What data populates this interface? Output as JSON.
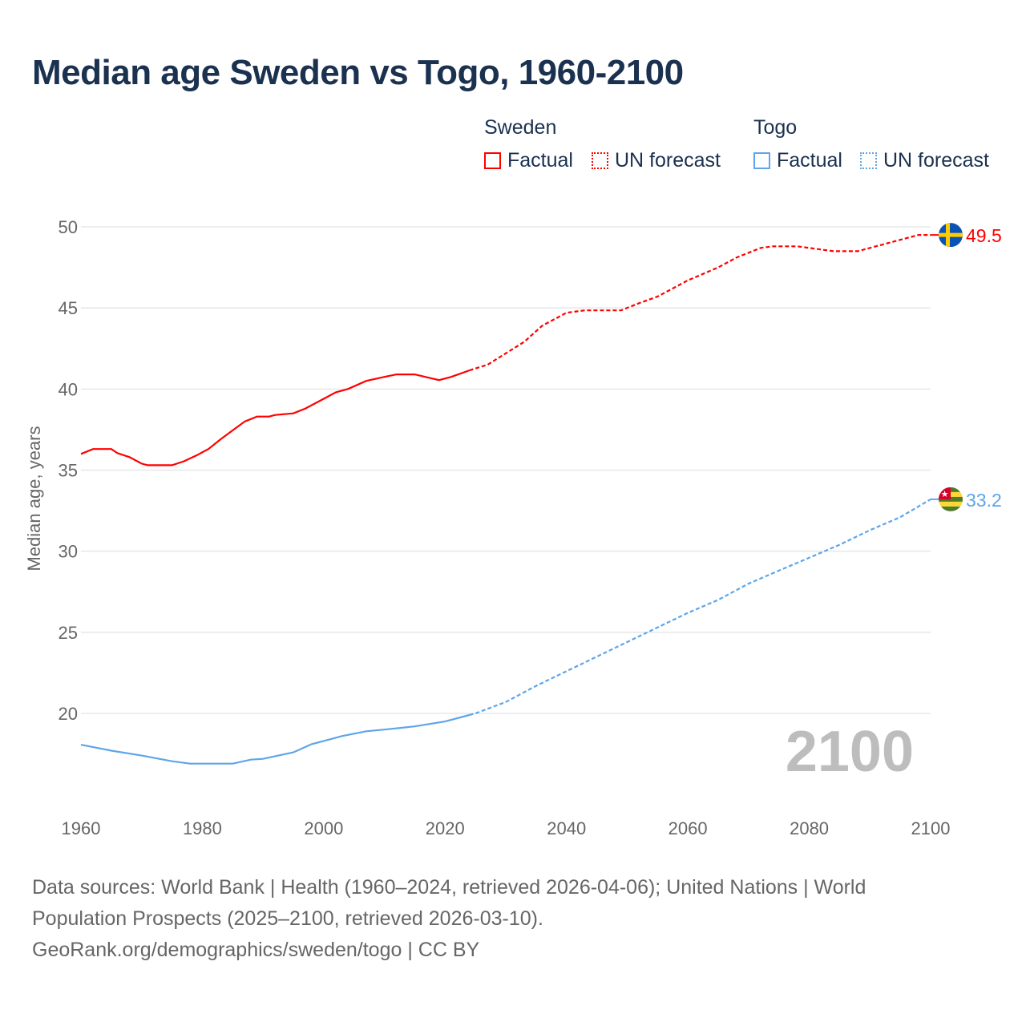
{
  "title": "Median age Sweden vs Togo, 1960-2100",
  "legend": {
    "groups": [
      {
        "name": "Sweden",
        "color": "#ff0000",
        "factual_label": "Factual",
        "forecast_label": "UN forecast"
      },
      {
        "name": "Togo",
        "color": "#5ea5ea",
        "factual_label": "Factual",
        "forecast_label": "UN forecast"
      }
    ]
  },
  "footer": {
    "sources": "Data sources: World Bank | Health (1960–2024, retrieved 2026-04-06); United Nations | World Population Prospects (2025–2100, retrieved 2026-03-10).",
    "credit": "GeoRank.org/demographics/sweden/togo | CC BY"
  },
  "chart_data": {
    "type": "line",
    "title": "Median age Sweden vs Togo, 1960-2100",
    "xlabel": "",
    "ylabel": "Median age, years",
    "xlim": [
      1960,
      2100
    ],
    "ylim": [
      15,
      50
    ],
    "x_ticks": [
      "1960",
      "1980",
      "2000",
      "2020",
      "2040",
      "2060",
      "2080",
      "2100"
    ],
    "y_ticks": [
      "20",
      "25",
      "30",
      "35",
      "40",
      "45",
      "50"
    ],
    "grid": true,
    "year_watermark": "2100",
    "factual_end": 2024,
    "series": [
      {
        "name": "Sweden",
        "color": "#ff0000",
        "end_label": "49.5",
        "points": [
          [
            1960,
            36.0
          ],
          [
            1962,
            36.3
          ],
          [
            1965,
            36.3
          ],
          [
            1966,
            36.05
          ],
          [
            1968,
            35.8
          ],
          [
            1970,
            35.4
          ],
          [
            1971,
            35.3
          ],
          [
            1975,
            35.3
          ],
          [
            1977,
            35.55
          ],
          [
            1979,
            35.9
          ],
          [
            1981,
            36.3
          ],
          [
            1983,
            36.9
          ],
          [
            1985,
            37.45
          ],
          [
            1987,
            38.0
          ],
          [
            1989,
            38.3
          ],
          [
            1991,
            38.3
          ],
          [
            1992,
            38.4
          ],
          [
            1995,
            38.5
          ],
          [
            1997,
            38.8
          ],
          [
            2000,
            39.4
          ],
          [
            2002,
            39.8
          ],
          [
            2004,
            40.0
          ],
          [
            2007,
            40.5
          ],
          [
            2010,
            40.75
          ],
          [
            2012,
            40.9
          ],
          [
            2015,
            40.9
          ],
          [
            2019,
            40.55
          ],
          [
            2021,
            40.75
          ],
          [
            2024,
            41.15
          ],
          [
            2027,
            41.5
          ],
          [
            2030,
            42.2
          ],
          [
            2033,
            42.9
          ],
          [
            2036,
            43.9
          ],
          [
            2040,
            44.7
          ],
          [
            2043,
            44.85
          ],
          [
            2049,
            44.85
          ],
          [
            2052,
            45.3
          ],
          [
            2055,
            45.7
          ],
          [
            2060,
            46.7
          ],
          [
            2065,
            47.5
          ],
          [
            2068,
            48.1
          ],
          [
            2072,
            48.7
          ],
          [
            2074,
            48.8
          ],
          [
            2078,
            48.8
          ],
          [
            2080,
            48.7
          ],
          [
            2084,
            48.5
          ],
          [
            2088,
            48.5
          ],
          [
            2090,
            48.7
          ],
          [
            2095,
            49.2
          ],
          [
            2098,
            49.5
          ],
          [
            2100,
            49.5
          ]
        ]
      },
      {
        "name": "Togo",
        "color": "#5ea5ea",
        "end_label": "33.2",
        "points": [
          [
            1960,
            18.07
          ],
          [
            1965,
            17.7
          ],
          [
            1970,
            17.4
          ],
          [
            1975,
            17.05
          ],
          [
            1978,
            16.9
          ],
          [
            1985,
            16.9
          ],
          [
            1988,
            17.15
          ],
          [
            1990,
            17.2
          ],
          [
            1995,
            17.6
          ],
          [
            1998,
            18.1
          ],
          [
            2000,
            18.3
          ],
          [
            2003,
            18.6
          ],
          [
            2007,
            18.9
          ],
          [
            2010,
            19.0
          ],
          [
            2015,
            19.2
          ],
          [
            2020,
            19.5
          ],
          [
            2024,
            19.9
          ],
          [
            2025,
            20.0
          ],
          [
            2030,
            20.7
          ],
          [
            2035,
            21.7
          ],
          [
            2040,
            22.6
          ],
          [
            2045,
            23.5
          ],
          [
            2050,
            24.4
          ],
          [
            2055,
            25.3
          ],
          [
            2060,
            26.2
          ],
          [
            2065,
            27.0
          ],
          [
            2070,
            28.0
          ],
          [
            2075,
            28.8
          ],
          [
            2080,
            29.6
          ],
          [
            2085,
            30.4
          ],
          [
            2090,
            31.3
          ],
          [
            2095,
            32.1
          ],
          [
            2100,
            33.2
          ]
        ]
      }
    ]
  }
}
